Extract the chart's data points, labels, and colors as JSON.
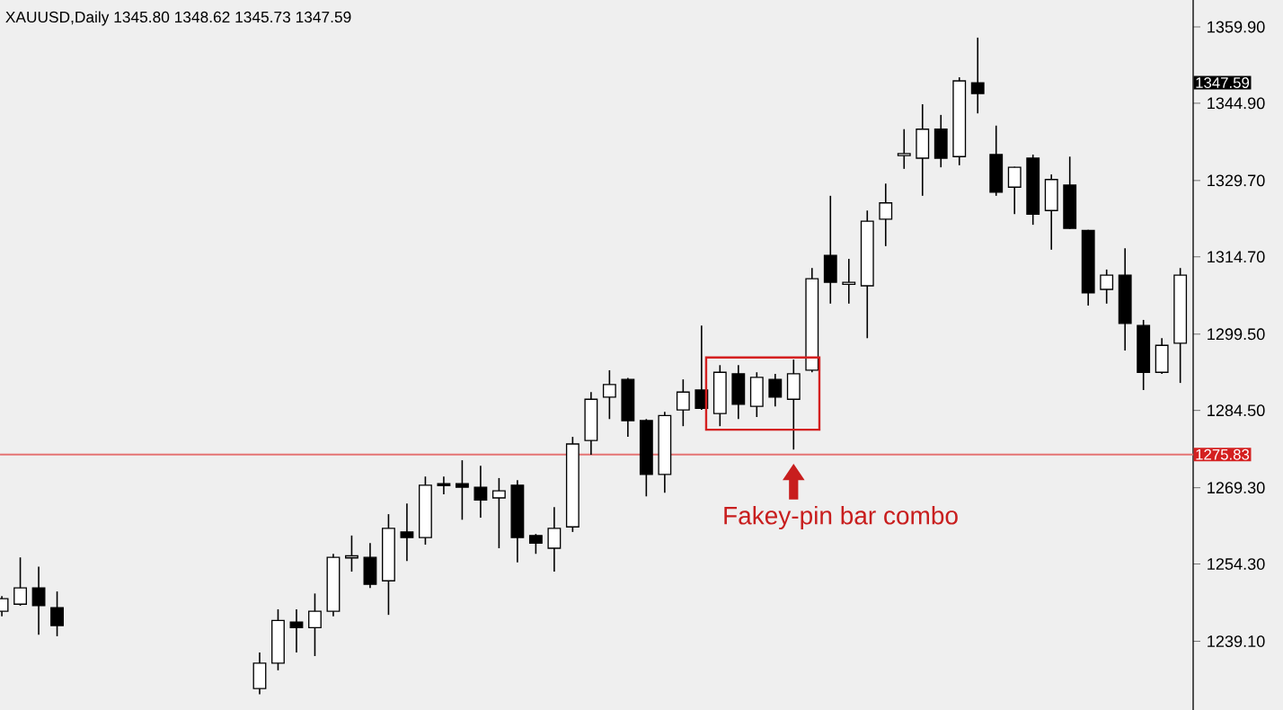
{
  "chart_data": {
    "type": "candlestick",
    "title": "XAUUSD,Daily  1345.80 1348.62 1345.73 1347.59",
    "categories": [
      null,
      null,
      null,
      null,
      null,
      null,
      null,
      null,
      null,
      null,
      null,
      null,
      null,
      null,
      null,
      null,
      null,
      null,
      null,
      null,
      null,
      null,
      null,
      null,
      null,
      null,
      null,
      null,
      null,
      null,
      null,
      null,
      null,
      null,
      null,
      null,
      null,
      null,
      null,
      null,
      null,
      null,
      null,
      null,
      null,
      null,
      null,
      null,
      null,
      null,
      null,
      null,
      null,
      null,
      null,
      null,
      null,
      null,
      null,
      null,
      null,
      null,
      null,
      null,
      null
    ],
    "ohlc": [
      [
        1245.0,
        1248.0,
        1244.0,
        1247.5
      ],
      [
        1246.4,
        1255.6,
        1246.1,
        1249.6
      ],
      [
        1249.6,
        1253.8,
        1240.4,
        1246.1
      ],
      [
        1245.7,
        1248.9,
        1240.1,
        1242.2
      ],
      null,
      null,
      null,
      null,
      null,
      null,
      null,
      null,
      null,
      null,
      [
        1229.8,
        1236.9,
        1228.7,
        1234.8
      ],
      [
        1234.8,
        1245.4,
        1233.4,
        1243.2
      ],
      [
        1242.9,
        1245.4,
        1236.9,
        1241.8
      ],
      [
        1241.8,
        1248.5,
        1236.2,
        1245.0
      ],
      [
        1245.0,
        1256.3,
        1244.0,
        1255.6
      ],
      [
        1255.5,
        1259.9,
        1252.8,
        1255.9
      ],
      [
        1255.6,
        1258.4,
        1249.6,
        1250.3
      ],
      [
        1251.0,
        1264.1,
        1244.3,
        1261.3
      ],
      [
        1260.6,
        1266.2,
        1254.9,
        1259.5
      ],
      [
        1259.5,
        1271.5,
        1258.1,
        1269.8
      ],
      [
        1270.1,
        1271.5,
        1268.0,
        1269.7
      ],
      [
        1270.1,
        1274.7,
        1263.0,
        1269.4
      ],
      [
        1269.4,
        1273.6,
        1263.4,
        1266.9
      ],
      [
        1267.3,
        1271.2,
        1257.4,
        1268.7
      ],
      [
        1269.8,
        1270.8,
        1254.6,
        1259.5
      ],
      [
        1259.9,
        1260.2,
        1256.3,
        1258.4
      ],
      [
        1257.4,
        1265.5,
        1252.8,
        1261.3
      ],
      [
        1261.6,
        1279.3,
        1260.6,
        1277.9
      ],
      [
        1278.6,
        1288.1,
        1275.8,
        1286.7
      ],
      [
        1287.1,
        1292.4,
        1282.8,
        1289.6
      ],
      [
        1290.6,
        1290.9,
        1279.3,
        1282.5
      ],
      [
        1282.5,
        1282.8,
        1267.6,
        1271.9
      ],
      [
        1271.9,
        1284.2,
        1268.3,
        1283.5
      ],
      [
        1284.6,
        1290.6,
        1281.4,
        1288.1
      ],
      [
        1288.5,
        1301.2,
        1284.6,
        1284.9
      ],
      [
        1283.9,
        1293.4,
        1281.4,
        1292.0
      ],
      [
        1291.7,
        1293.4,
        1282.8,
        1285.7
      ],
      [
        1285.3,
        1292.0,
        1283.2,
        1291.0
      ],
      [
        1290.6,
        1291.7,
        1285.3,
        1287.1
      ],
      [
        1286.7,
        1294.5,
        1276.8,
        1291.7
      ],
      [
        1292.4,
        1312.5,
        1292.0,
        1310.4
      ],
      [
        1315.0,
        1326.7,
        1305.5,
        1309.7
      ],
      [
        1309.3,
        1314.3,
        1305.5,
        1309.7
      ],
      [
        1309.0,
        1323.8,
        1298.7,
        1321.7
      ],
      [
        1322.1,
        1329.1,
        1316.8,
        1325.3
      ],
      [
        1334.6,
        1339.8,
        1332.0,
        1335.0
      ],
      [
        1334.1,
        1344.7,
        1326.7,
        1339.8
      ],
      [
        1339.8,
        1342.6,
        1332.3,
        1334.1
      ],
      [
        1334.4,
        1350.0,
        1332.7,
        1349.3
      ],
      [
        1348.9,
        1357.8,
        1342.9,
        1346.8
      ],
      [
        1334.8,
        1340.5,
        1326.7,
        1327.4
      ],
      [
        1328.4,
        1332.4,
        1323.1,
        1332.3
      ],
      [
        1334.1,
        1334.8,
        1321.0,
        1323.1
      ],
      [
        1323.8,
        1330.9,
        1316.1,
        1329.9
      ],
      [
        1328.8,
        1334.4,
        1320.2,
        1320.3
      ],
      [
        1319.9,
        1320.0,
        1305.1,
        1307.6
      ],
      [
        1308.3,
        1312.2,
        1305.5,
        1311.1
      ],
      [
        1311.1,
        1316.4,
        1296.3,
        1301.6
      ],
      [
        1301.2,
        1302.3,
        1288.5,
        1292.0
      ],
      [
        1292.0,
        1298.7,
        1291.7,
        1297.3
      ],
      [
        1297.7,
        1312.5,
        1289.9,
        1311.1
      ]
    ],
    "ylim": [
      1225.6,
      1365.2
    ],
    "yticks": [
      {
        "value": 1359.9,
        "label": "1359.90"
      },
      {
        "value": 1344.9,
        "label": "1344.90"
      },
      {
        "value": 1329.7,
        "label": "1329.70"
      },
      {
        "value": 1314.7,
        "label": "1314.70"
      },
      {
        "value": 1299.5,
        "label": "1299.50"
      },
      {
        "value": 1284.5,
        "label": "1284.50"
      },
      {
        "value": 1269.3,
        "label": "1269.30"
      },
      {
        "value": 1254.3,
        "label": "1254.30"
      },
      {
        "value": 1239.1,
        "label": "1239.10"
      }
    ],
    "tick_labels": "y",
    "ref_lines": [
      {
        "axis": "y",
        "value": 1275.83,
        "label": "1275.83",
        "color": "#e57373"
      }
    ],
    "annotations": [
      "Fakey-pin bar combo",
      "1347.59"
    ]
  }
}
